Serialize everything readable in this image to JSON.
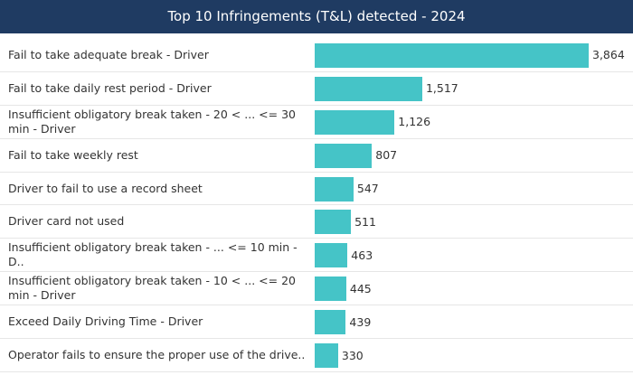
{
  "chart_data": {
    "type": "bar",
    "orientation": "horizontal",
    "title": "Top 10 Infringements (T&L) detected - 2024",
    "categories": [
      "Fail to take adequate break - Driver",
      "Fail to take daily rest period - Driver",
      "Insufficient obligatory break taken - 20 < ... <= 30 min - Driver",
      "Fail to take weekly rest",
      "Driver to fail to use a record sheet",
      "Driver card not used",
      "Insufficient obligatory break taken - ... <= 10 min - D..",
      "Insufficient obligatory break taken - 10 < ... <= 20 min - Driver",
      "Exceed Daily Driving Time - Driver",
      "Operator fails to ensure the proper use of the drive.."
    ],
    "values": [
      3864,
      1517,
      1126,
      807,
      547,
      511,
      463,
      445,
      439,
      330
    ],
    "value_labels": [
      "3,864",
      "1,517",
      "1,126",
      "807",
      "547",
      "511",
      "463",
      "445",
      "439",
      "330"
    ],
    "color": "#45c4c7"
  }
}
